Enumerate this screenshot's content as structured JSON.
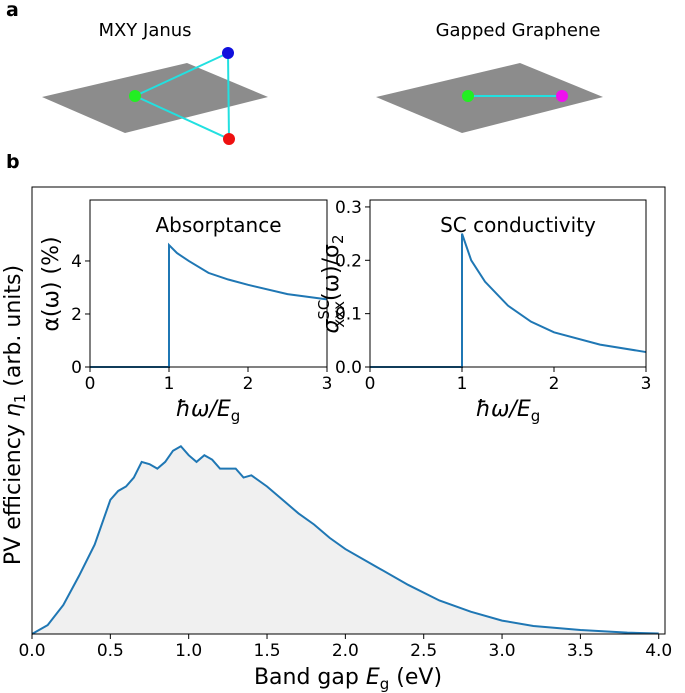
{
  "panels": [
    "a",
    "b"
  ],
  "diagram": {
    "left_title": "MXY Janus",
    "right_title": "Gapped Graphene"
  },
  "chart_data": [
    {
      "type": "line",
      "xlabel": [
        "Band gap ",
        "E",
        "g",
        " (eV)"
      ],
      "ylabel": [
        "PV efficiency ",
        "η",
        "1",
        " (arb. units)"
      ],
      "xlim": [
        0,
        4.04
      ],
      "ylim": [
        0,
        1
      ],
      "xticks": [
        {
          "value": 0,
          "label": "0.0"
        },
        {
          "value": 0.5,
          "label": "0.5"
        },
        {
          "value": 1,
          "label": "1.0"
        },
        {
          "value": 1.5,
          "label": "1.5"
        },
        {
          "value": 2,
          "label": "2.0"
        },
        {
          "value": 2.5,
          "label": "2.5"
        },
        {
          "value": 3,
          "label": "3.0"
        },
        {
          "value": 3.5,
          "label": "3.5"
        },
        {
          "value": 4,
          "label": "4.0"
        }
      ],
      "fill": "#f0f0f0",
      "series": [
        {
          "color": "#1f77b4",
          "x": [
            0,
            0.1,
            0.2,
            0.3,
            0.4,
            0.5,
            0.55,
            0.6,
            0.65,
            0.7,
            0.75,
            0.8,
            0.85,
            0.9,
            0.95,
            1.0,
            1.05,
            1.1,
            1.15,
            1.2,
            1.3,
            1.35,
            1.4,
            1.5,
            1.6,
            1.7,
            1.8,
            1.9,
            2.0,
            2.2,
            2.4,
            2.6,
            2.8,
            3.0,
            3.2,
            3.5,
            3.8,
            4.0
          ],
          "values": [
            0,
            0.02,
            0.065,
            0.13,
            0.2,
            0.3,
            0.32,
            0.33,
            0.35,
            0.385,
            0.38,
            0.37,
            0.385,
            0.41,
            0.42,
            0.4,
            0.385,
            0.4,
            0.39,
            0.37,
            0.37,
            0.35,
            0.355,
            0.33,
            0.3,
            0.27,
            0.245,
            0.215,
            0.19,
            0.15,
            0.11,
            0.075,
            0.05,
            0.03,
            0.018,
            0.009,
            0.003,
            0.001
          ]
        }
      ]
    },
    {
      "type": "line",
      "title": "Absorptance",
      "xlabel": [
        "ħω/",
        "E",
        "g"
      ],
      "ylabel": [
        "α(ω) (%)"
      ],
      "xlim": [
        0,
        3
      ],
      "ylim": [
        0,
        6.3
      ],
      "xticks": [
        0,
        1,
        2,
        3
      ],
      "yticks": [
        0,
        2,
        4
      ],
      "series": [
        {
          "color": "#1f77b4",
          "x": [
            0,
            1,
            1,
            1.1,
            1.25,
            1.5,
            1.75,
            2,
            2.5,
            3
          ],
          "values": [
            0,
            0,
            4.6,
            4.3,
            4.0,
            3.55,
            3.3,
            3.1,
            2.75,
            2.55
          ]
        }
      ]
    },
    {
      "type": "line",
      "title": "SC conductivity",
      "xlabel": [
        "ħω/",
        "E",
        "g"
      ],
      "ylabel": [
        "σ",
        "SC",
        "xxx",
        "(ω)/σ",
        "2"
      ],
      "xlim": [
        0,
        3
      ],
      "ylim": [
        0,
        0.313
      ],
      "xticks": [
        0,
        1,
        2,
        3
      ],
      "yticks": [
        {
          "value": 0,
          "label": "0.0"
        },
        {
          "value": 0.1,
          "label": "0.1"
        },
        {
          "value": 0.2,
          "label": "0.2"
        },
        {
          "value": 0.3,
          "label": "0.3"
        }
      ],
      "series": [
        {
          "color": "#1f77b4",
          "x": [
            0,
            1,
            1,
            1.1,
            1.25,
            1.5,
            1.75,
            2,
            2.5,
            3
          ],
          "values": [
            0,
            0,
            0.25,
            0.2,
            0.16,
            0.115,
            0.085,
            0.065,
            0.042,
            0.028
          ]
        }
      ]
    }
  ]
}
